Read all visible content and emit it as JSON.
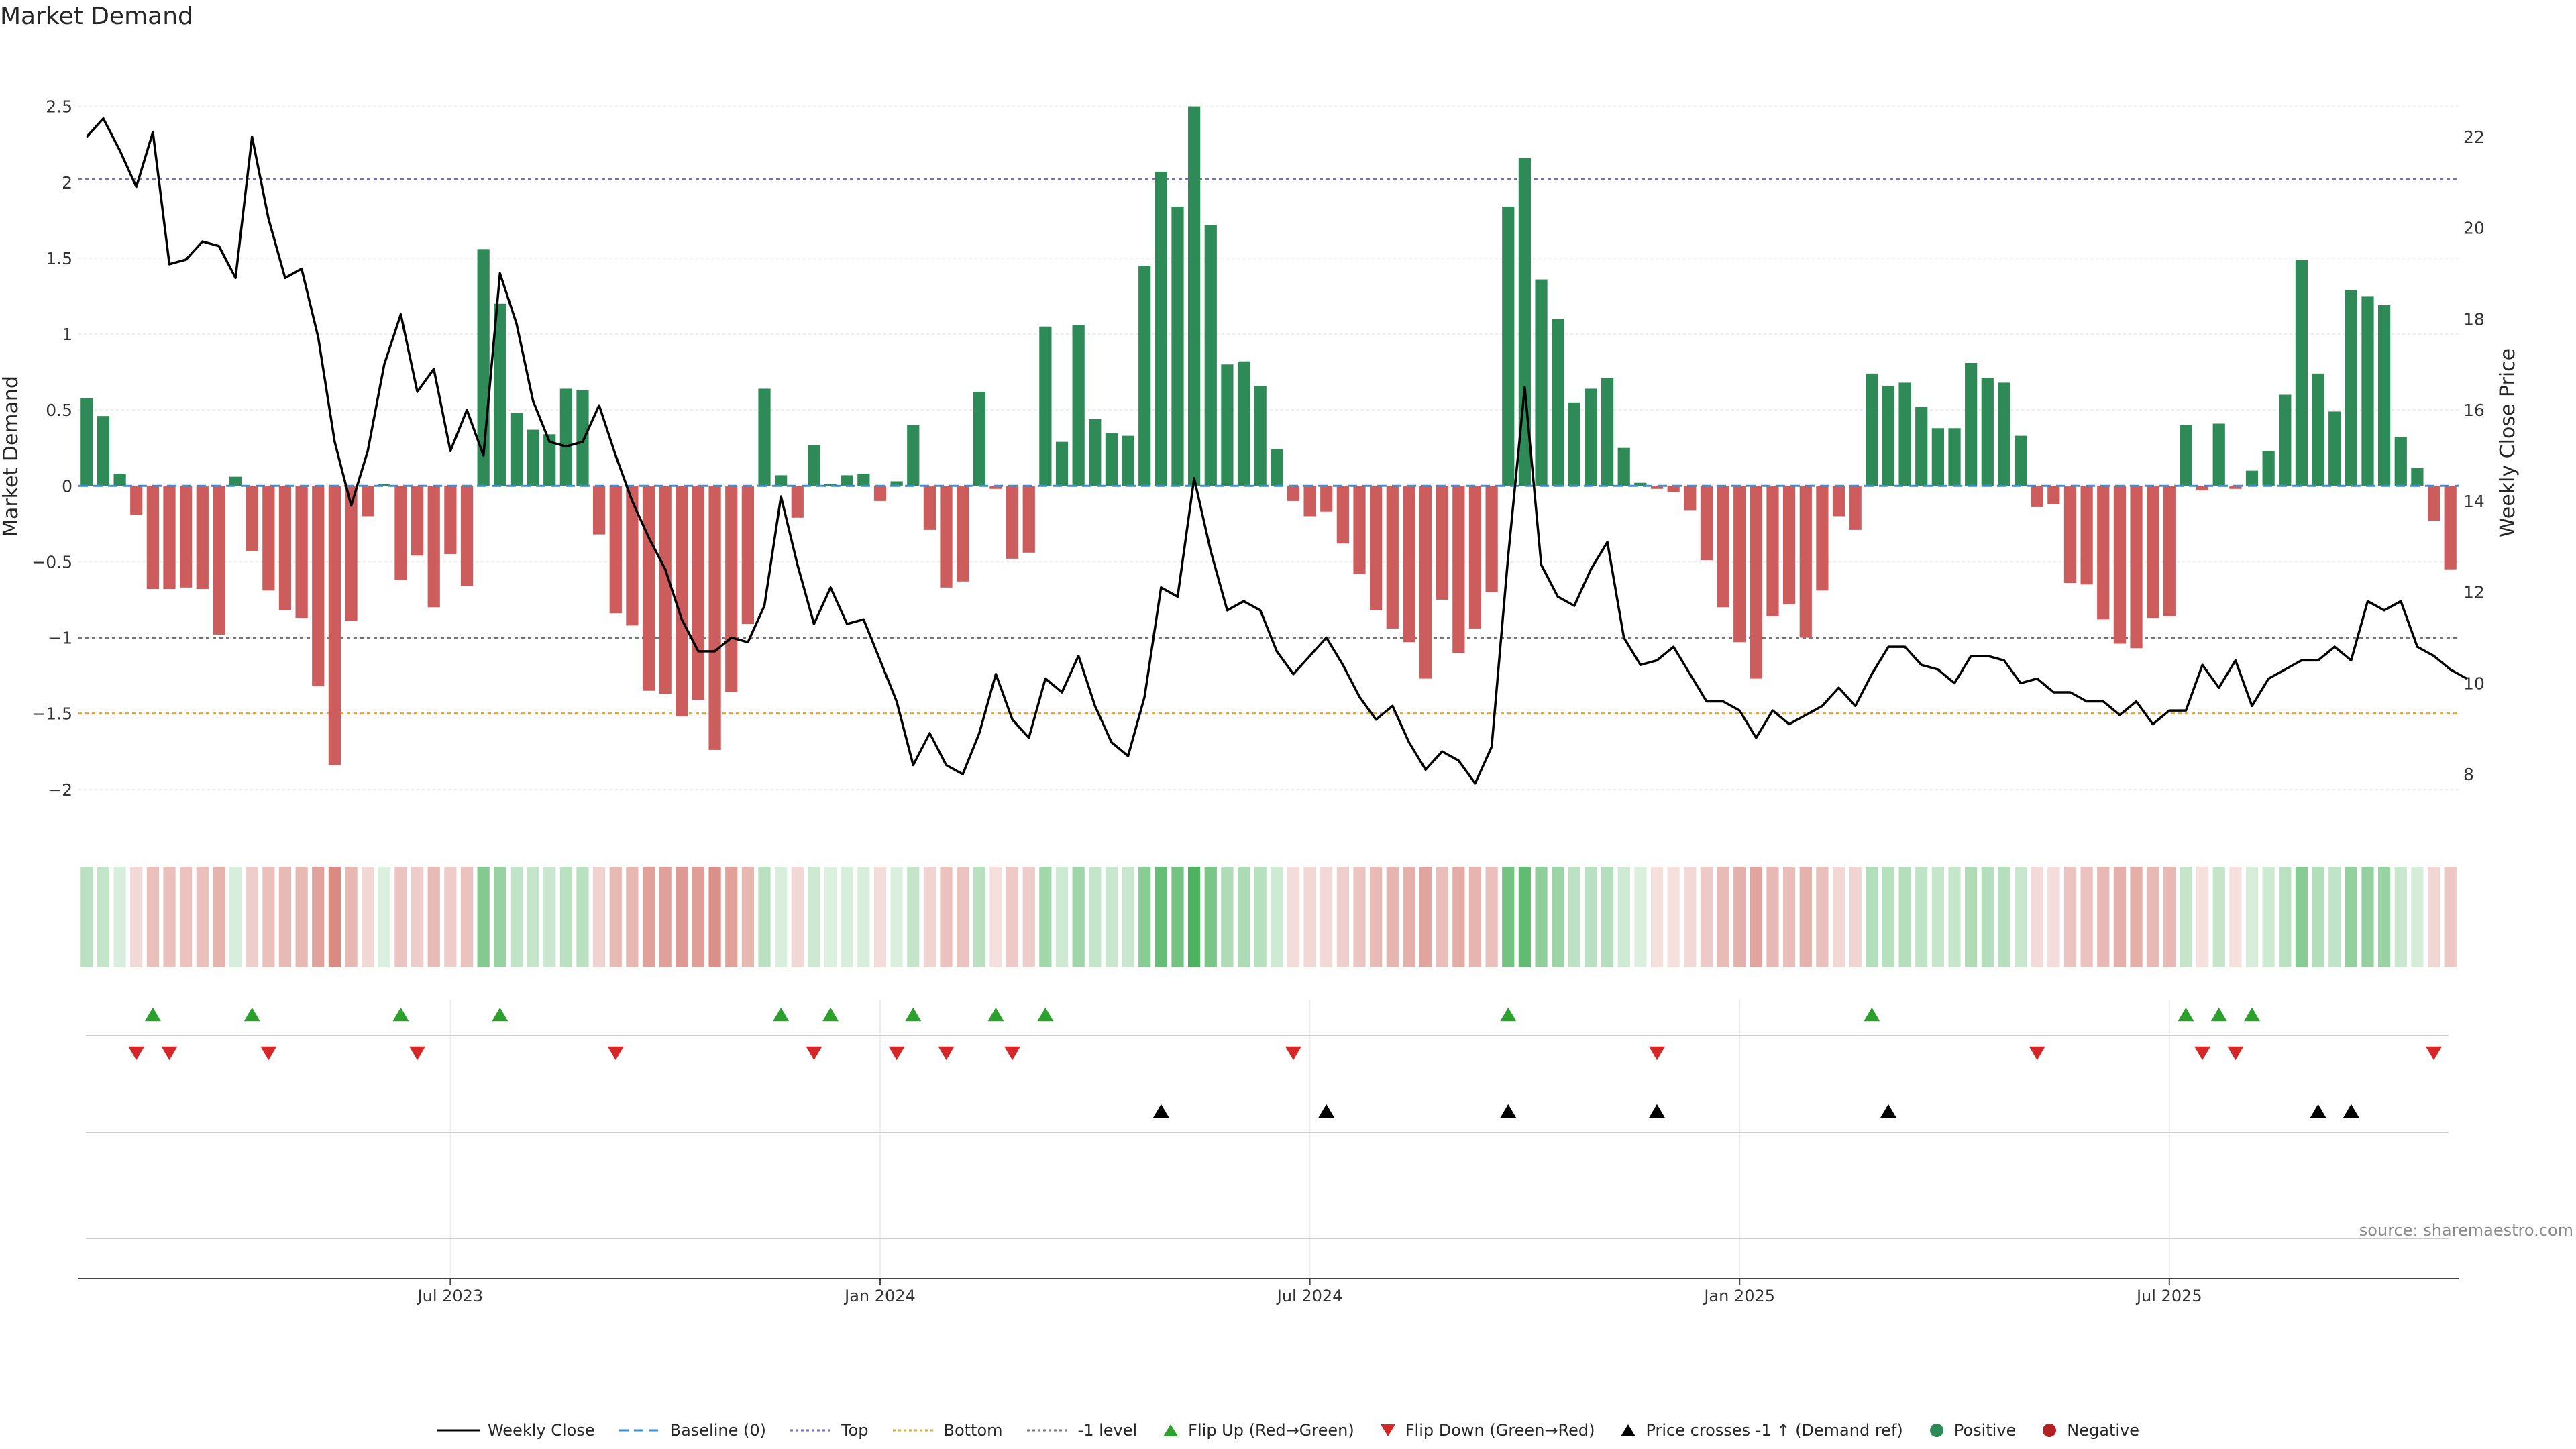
{
  "title": "Market Demand",
  "source": "source: sharemaestro.com",
  "colors": {
    "positive": "#2e8b57",
    "negative": "#cd5c5c",
    "top_line": "#7a6fb6",
    "bottom_line": "#d9a53a",
    "level_line": "#777777",
    "baseline": "#3b8fd6",
    "flip_up": "#2ca02c",
    "flip_down": "#d62728",
    "cross": "#000000",
    "price": "#000000"
  },
  "chart_data": {
    "type": "bar",
    "title": "Market Demand",
    "ylabel": "Market Demand",
    "ylabel_right": "Weekly Close Price",
    "ylim": [
      -2.2,
      2.6
    ],
    "ylim_right": [
      7.0,
      23.0
    ],
    "yticks": [
      "2.5",
      "2",
      "1.5",
      "1",
      "0.5",
      "0",
      "−0.5",
      "−1",
      "−1.5",
      "−2"
    ],
    "yticks_right": [
      "22",
      "20",
      "18",
      "16",
      "14",
      "12",
      "10",
      "8"
    ],
    "reference_levels": {
      "top": 2.02,
      "bottom": -1.5,
      "minus_one": -1.0,
      "baseline": 0
    },
    "x_ticks": [
      "Jul 2023",
      "Jan 2024",
      "Jul 2024",
      "Jan 2025",
      "Jul 2025"
    ],
    "x_tick_index": [
      22,
      48,
      74,
      100,
      126
    ],
    "demand": [
      0.58,
      0.46,
      0.08,
      -0.19,
      -0.68,
      -0.68,
      -0.67,
      -0.68,
      -0.98,
      0.06,
      -0.43,
      -0.69,
      -0.82,
      -0.87,
      -1.32,
      -1.84,
      -0.89,
      -0.2,
      0.01,
      -0.62,
      -0.46,
      -0.8,
      -0.45,
      -0.66,
      1.56,
      1.2,
      0.48,
      0.37,
      0.34,
      0.64,
      0.63,
      -0.32,
      -0.84,
      -0.92,
      -1.35,
      -1.37,
      -1.52,
      -1.41,
      -1.74,
      -1.36,
      -0.91,
      0.64,
      0.07,
      -0.21,
      0.27,
      0.01,
      0.07,
      0.08,
      -0.1,
      0.03,
      0.4,
      -0.29,
      -0.67,
      -0.63,
      0.62,
      -0.02,
      -0.48,
      -0.44,
      1.05,
      0.29,
      1.06,
      0.44,
      0.35,
      0.33,
      1.45,
      2.07,
      1.84,
      2.5,
      1.72,
      0.8,
      0.82,
      0.66,
      0.24,
      -0.1,
      -0.2,
      -0.17,
      -0.38,
      -0.58,
      -0.82,
      -0.94,
      -1.03,
      -1.27,
      -0.75,
      -1.1,
      -0.94,
      -0.7,
      1.84,
      2.16,
      1.36,
      1.1,
      0.55,
      0.64,
      0.71,
      0.25,
      0.02,
      -0.02,
      -0.04,
      -0.16,
      -0.49,
      -0.8,
      -1.03,
      -1.27,
      -0.86,
      -0.78,
      -1.0,
      -0.69,
      -0.2,
      -0.29,
      0.74,
      0.66,
      0.68,
      0.52,
      0.38,
      0.38,
      0.81,
      0.71,
      0.68,
      0.33,
      -0.14,
      -0.12,
      -0.64,
      -0.65,
      -0.88,
      -1.04,
      -1.07,
      -0.87,
      -0.86,
      0.4,
      -0.03,
      0.41,
      -0.02,
      0.1,
      0.23,
      0.6,
      1.49,
      0.74,
      0.49,
      1.29,
      1.25,
      1.19,
      0.32,
      0.12,
      -0.23,
      -0.55
    ],
    "price": [
      22.0,
      22.4,
      21.7,
      20.9,
      22.1,
      19.2,
      19.3,
      19.7,
      19.6,
      18.9,
      22.0,
      20.2,
      18.9,
      19.1,
      17.6,
      15.3,
      13.9,
      15.1,
      17.0,
      18.1,
      16.4,
      16.9,
      15.1,
      16.0,
      15.0,
      19.0,
      17.9,
      16.2,
      15.3,
      15.2,
      15.3,
      16.1,
      15.0,
      14.0,
      13.2,
      12.5,
      11.4,
      10.7,
      10.7,
      11.0,
      10.9,
      11.7,
      14.1,
      12.6,
      11.3,
      12.1,
      11.3,
      11.4,
      10.5,
      9.6,
      8.2,
      8.9,
      8.2,
      8.0,
      8.9,
      10.2,
      9.2,
      8.8,
      10.1,
      9.8,
      10.6,
      9.5,
      8.7,
      8.4,
      9.7,
      12.1,
      11.9,
      14.5,
      12.9,
      11.6,
      11.8,
      11.6,
      10.7,
      10.2,
      10.6,
      11.0,
      10.4,
      9.7,
      9.2,
      9.5,
      8.7,
      8.1,
      8.5,
      8.3,
      7.8,
      8.6,
      12.8,
      16.5,
      12.6,
      11.9,
      11.7,
      12.5,
      13.1,
      11.0,
      10.4,
      10.5,
      10.8,
      10.2,
      9.6,
      9.6,
      9.4,
      8.8,
      9.4,
      9.1,
      9.3,
      9.5,
      9.9,
      9.5,
      10.2,
      10.8,
      10.8,
      10.4,
      10.3,
      10.0,
      10.6,
      10.6,
      10.5,
      10.0,
      10.1,
      9.8,
      9.8,
      9.6,
      9.6,
      9.3,
      9.6,
      9.1,
      9.4,
      9.4,
      10.4,
      9.9,
      10.5,
      9.5,
      10.1,
      10.3,
      10.5,
      10.5,
      10.8,
      10.5,
      11.8,
      11.6,
      11.8,
      10.8,
      10.6,
      10.3,
      10.1
    ],
    "flip_up_index": [
      4,
      10,
      19,
      25,
      42,
      45,
      50,
      55,
      58,
      86,
      108,
      127,
      129,
      131
    ],
    "flip_down_index": [
      3,
      5,
      11,
      20,
      32,
      44,
      49,
      52,
      56,
      73,
      95,
      118,
      128,
      130,
      142
    ],
    "cross_up_index": [
      65,
      75,
      86,
      95,
      109,
      135,
      137
    ]
  },
  "legend": [
    {
      "label": "Weekly Close",
      "kind": "line-solid",
      "color": "#000000"
    },
    {
      "label": "Baseline (0)",
      "kind": "line-dash",
      "color": "#3b8fd6"
    },
    {
      "label": "Top",
      "kind": "line-dot",
      "color": "#7a6fb6"
    },
    {
      "label": "Bottom",
      "kind": "line-dot",
      "color": "#d9a53a"
    },
    {
      "label": "-1 level",
      "kind": "line-dot",
      "color": "#777777"
    },
    {
      "label": "Flip Up (Red→Green)",
      "kind": "tri-up",
      "color": "#2ca02c"
    },
    {
      "label": "Flip Down (Green→Red)",
      "kind": "tri-down",
      "color": "#d62728"
    },
    {
      "label": "Price crosses -1 ↑ (Demand ref)",
      "kind": "tri-up",
      "color": "#000000"
    },
    {
      "label": "Positive",
      "kind": "dot",
      "color": "#2e8b57"
    },
    {
      "label": "Negative",
      "kind": "dot",
      "color": "#b22222"
    }
  ]
}
